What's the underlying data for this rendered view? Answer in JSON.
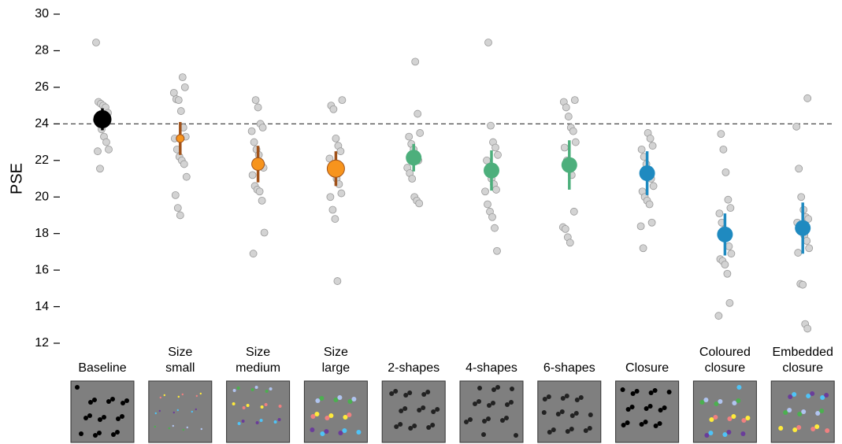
{
  "chart_data": {
    "type": "dot",
    "ylabel": "PSE",
    "categories": [
      "Baseline",
      "Size small",
      "Size medium",
      "Size large",
      "2-shapes",
      "4-shapes",
      "6-shapes",
      "Closure",
      "Coloured closure",
      "Embedded closure"
    ],
    "values": [
      24.25,
      23.2,
      21.8,
      21.55,
      22.15,
      21.45,
      21.75,
      21.3,
      17.95,
      18.3
    ],
    "errors": [
      0.6,
      0.9,
      1.0,
      0.95,
      0.75,
      1.1,
      1.35,
      1.2,
      1.15,
      1.4
    ],
    "colors": [
      "#000000",
      "#f7941d",
      "#f7941d",
      "#f7941d",
      "#4daf7c",
      "#4daf7c",
      "#4daf7c",
      "#1f8ac0",
      "#1f8ac0",
      "#1f8ac0"
    ],
    "errorbar_colors": [
      "#000000",
      "#a0521a",
      "#a0521a",
      "#a0521a",
      "#4daf7c",
      "#4daf7c",
      "#4daf7c",
      "#1f8ac0",
      "#1f8ac0",
      "#1f8ac0"
    ],
    "points": [
      [
        28.45,
        25.2,
        25.1,
        25.0,
        24.9,
        24.6,
        24.2,
        24.0,
        23.7,
        23.3,
        23.0,
        22.6,
        22.5,
        21.55
      ],
      [
        26.55,
        26.0,
        25.7,
        25.35,
        25.3,
        24.7,
        23.8,
        23.3,
        23.2,
        22.6,
        22.2,
        22.0,
        21.8,
        21.1,
        20.1,
        19.4,
        19.0
      ],
      [
        25.3,
        24.9,
        24.0,
        23.8,
        23.6,
        23.0,
        22.6,
        22.3,
        21.8,
        21.6,
        21.2,
        20.6,
        20.4,
        20.3,
        19.8,
        18.05,
        16.9
      ],
      [
        25.3,
        25.0,
        24.8,
        23.2,
        22.8,
        22.5,
        22.1,
        21.7,
        21.4,
        21.0,
        20.7,
        20.2,
        20.0,
        19.3,
        18.8,
        15.4
      ],
      [
        27.4,
        24.55,
        23.5,
        23.3,
        22.9,
        22.6,
        22.3,
        22.0,
        21.6,
        21.3,
        21.0,
        20.0,
        19.8,
        19.65
      ],
      [
        28.45,
        23.9,
        23.0,
        22.7,
        22.3,
        22.0,
        21.6,
        21.0,
        20.7,
        20.4,
        20.3,
        19.6,
        19.2,
        18.9,
        18.3,
        17.05
      ],
      [
        25.3,
        25.2,
        24.9,
        24.4,
        23.8,
        23.6,
        23.0,
        22.7,
        22.0,
        21.6,
        21.2,
        19.2,
        18.35,
        18.25,
        17.8,
        17.5
      ],
      [
        23.5,
        23.2,
        22.8,
        22.6,
        22.2,
        21.8,
        21.4,
        21.0,
        20.6,
        20.3,
        20.0,
        19.8,
        19.6,
        18.6,
        18.4,
        17.2
      ],
      [
        23.45,
        22.6,
        21.35,
        19.85,
        19.4,
        19.1,
        18.6,
        18.2,
        17.9,
        17.3,
        16.9,
        16.6,
        16.5,
        16.3,
        15.8,
        14.2,
        13.5
      ],
      [
        25.4,
        23.85,
        21.55,
        20.0,
        19.3,
        18.9,
        18.8,
        18.6,
        18.4,
        18.2,
        17.9,
        17.6,
        17.2,
        16.95,
        15.25,
        15.2,
        13.05,
        12.8
      ]
    ],
    "point_color": "#d3d3d3",
    "reference_line": 24,
    "ylim": [
      12,
      30
    ],
    "yticks": [
      12,
      14,
      16,
      18,
      20,
      22,
      24,
      26,
      28,
      30
    ]
  }
}
